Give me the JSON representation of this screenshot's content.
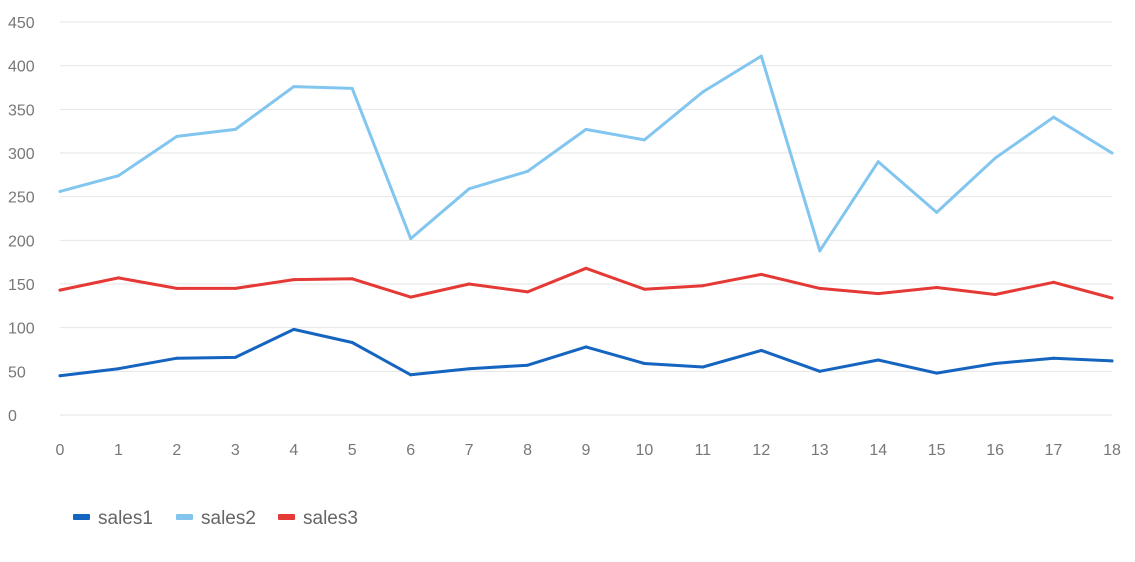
{
  "chart_data": {
    "type": "line",
    "x": [
      0,
      1,
      2,
      3,
      4,
      5,
      6,
      7,
      8,
      9,
      10,
      11,
      12,
      13,
      14,
      15,
      16,
      17,
      18
    ],
    "series": [
      {
        "name": "sales1",
        "color": "#1565c0",
        "values": [
          45,
          53,
          65,
          66,
          98,
          83,
          46,
          53,
          57,
          78,
          59,
          55,
          74,
          50,
          63,
          48,
          59,
          65,
          62
        ]
      },
      {
        "name": "sales2",
        "color": "#82c6f0",
        "values": [
          256,
          274,
          319,
          327,
          376,
          374,
          202,
          259,
          279,
          327,
          315,
          370,
          411,
          188,
          290,
          232,
          294,
          341,
          300
        ]
      },
      {
        "name": "sales3",
        "color": "#e53935",
        "values": [
          143,
          157,
          145,
          145,
          155,
          156,
          135,
          150,
          141,
          168,
          144,
          148,
          161,
          145,
          139,
          146,
          138,
          152,
          134
        ]
      }
    ],
    "y_ticks": [
      0,
      50,
      100,
      150,
      200,
      250,
      300,
      350,
      400,
      450
    ],
    "ylim": [
      0,
      450
    ],
    "xlim": [
      0,
      18
    ],
    "grid": true,
    "legend_position": "bottom-left"
  }
}
